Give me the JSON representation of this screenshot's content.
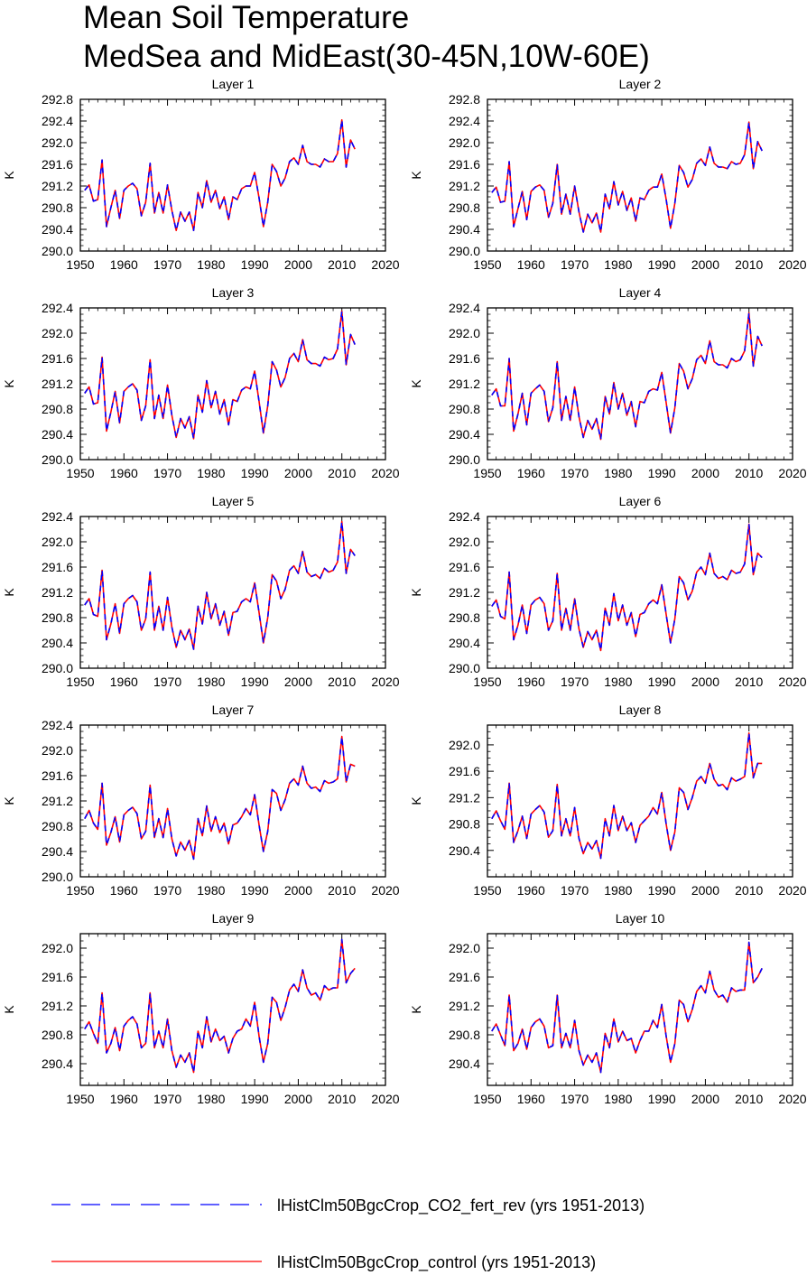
{
  "title": {
    "line1": "Mean Soil Temperature",
    "line2": "MedSea and MidEast(30-45N,10W-60E)"
  },
  "legend": {
    "items": [
      {
        "label": "lHistClm50BgcCrop_CO2_fert_rev (yrs 1951-2013)",
        "color": "#0000ff",
        "style": "dashed"
      },
      {
        "label": "lHistClm50BgcCrop_control (yrs 1951-2013)",
        "color": "#ff0000",
        "style": "solid"
      }
    ]
  },
  "chart_data": [
    {
      "type": "line",
      "title": "Layer 1",
      "ylabel": "K",
      "xlim": [
        1950,
        2020
      ],
      "ylim": [
        290.0,
        292.8
      ],
      "xticks": [
        1950,
        1960,
        1970,
        1980,
        1990,
        2000,
        2010,
        2020
      ],
      "yticks": [
        "290.0",
        "290.4",
        "290.8",
        "291.2",
        "291.6",
        "292.0",
        "292.4",
        "292.8"
      ],
      "x_start": 1951,
      "y": [
        291.12,
        291.22,
        290.92,
        290.95,
        291.68,
        290.45,
        290.8,
        291.12,
        290.6,
        291.12,
        291.2,
        291.25,
        291.15,
        290.65,
        290.9,
        291.62,
        290.7,
        291.08,
        290.7,
        291.22,
        290.75,
        290.38,
        290.72,
        290.55,
        290.72,
        290.38,
        291.08,
        290.8,
        291.3,
        290.9,
        291.12,
        290.78,
        291.0,
        290.58,
        291.0,
        290.95,
        291.15,
        291.2,
        291.2,
        291.45,
        290.98,
        290.45,
        290.9,
        291.6,
        291.47,
        291.2,
        291.35,
        291.65,
        291.72,
        291.6,
        291.95,
        291.65,
        291.6,
        291.6,
        291.55,
        291.7,
        291.65,
        291.65,
        291.8,
        292.42,
        291.55,
        292.05,
        291.88
      ],
      "series": [
        {
          "name": "lHistClm50BgcCrop_CO2_fert_rev (yrs 1951-2013)"
        },
        {
          "name": "lHistClm50BgcCrop_control (yrs 1951-2013)"
        }
      ]
    },
    {
      "type": "line",
      "title": "Layer 2",
      "ylabel": "K",
      "xlim": [
        1950,
        2020
      ],
      "ylim": [
        290.0,
        292.8
      ],
      "xticks": [
        1950,
        1960,
        1970,
        1980,
        1990,
        2000,
        2010,
        2020
      ],
      "yticks": [
        "290.0",
        "290.4",
        "290.8",
        "291.2",
        "291.6",
        "292.0",
        "292.4",
        "292.8"
      ],
      "x_start": 1951,
      "y": [
        291.08,
        291.18,
        290.9,
        290.92,
        291.65,
        290.45,
        290.78,
        291.1,
        290.58,
        291.1,
        291.18,
        291.22,
        291.12,
        290.62,
        290.88,
        291.6,
        290.68,
        291.05,
        290.68,
        291.2,
        290.72,
        290.35,
        290.68,
        290.52,
        290.7,
        290.35,
        291.05,
        290.78,
        291.28,
        290.85,
        291.1,
        290.75,
        290.98,
        290.55,
        290.98,
        290.95,
        291.12,
        291.18,
        291.18,
        291.42,
        290.95,
        290.42,
        290.88,
        291.58,
        291.45,
        291.18,
        291.32,
        291.62,
        291.7,
        291.58,
        291.92,
        291.62,
        291.55,
        291.55,
        291.52,
        291.65,
        291.6,
        291.62,
        291.78,
        292.38,
        291.52,
        292.02,
        291.85
      ],
      "series": [
        {
          "name": "lHistClm50BgcCrop_CO2_fert_rev (yrs 1951-2013)"
        },
        {
          "name": "lHistClm50BgcCrop_control (yrs 1951-2013)"
        }
      ]
    },
    {
      "type": "line",
      "title": "Layer 3",
      "ylabel": "K",
      "xlim": [
        1950,
        2020
      ],
      "ylim": [
        290.0,
        292.4
      ],
      "xticks": [
        1950,
        1960,
        1970,
        1980,
        1990,
        2000,
        2010,
        2020
      ],
      "yticks": [
        "290.0",
        "290.4",
        "290.8",
        "291.2",
        "291.6",
        "292.0",
        "292.4"
      ],
      "x_start": 1951,
      "y": [
        291.05,
        291.15,
        290.88,
        290.9,
        291.62,
        290.45,
        290.75,
        291.08,
        290.58,
        291.08,
        291.15,
        291.2,
        291.1,
        290.62,
        290.85,
        291.58,
        290.65,
        291.02,
        290.65,
        291.18,
        290.7,
        290.35,
        290.65,
        290.5,
        290.68,
        290.33,
        291.02,
        290.75,
        291.25,
        290.82,
        291.08,
        290.72,
        290.95,
        290.55,
        290.95,
        290.92,
        291.1,
        291.15,
        291.12,
        291.4,
        290.92,
        290.42,
        290.85,
        291.55,
        291.42,
        291.15,
        291.3,
        291.6,
        291.68,
        291.55,
        291.9,
        291.58,
        291.52,
        291.52,
        291.48,
        291.62,
        291.58,
        291.6,
        291.75,
        292.35,
        291.5,
        291.98,
        291.82
      ],
      "series": [
        {
          "name": "lHistClm50BgcCrop_CO2_fert_rev (yrs 1951-2013)"
        },
        {
          "name": "lHistClm50BgcCrop_control (yrs 1951-2013)"
        }
      ]
    },
    {
      "type": "line",
      "title": "Layer 4",
      "ylabel": "K",
      "xlim": [
        1950,
        2020
      ],
      "ylim": [
        290.0,
        292.4
      ],
      "xticks": [
        1950,
        1960,
        1970,
        1980,
        1990,
        2000,
        2010,
        2020
      ],
      "yticks": [
        "290.0",
        "290.4",
        "290.8",
        "291.2",
        "291.6",
        "292.0",
        "292.4"
      ],
      "x_start": 1951,
      "y": [
        291.02,
        291.12,
        290.85,
        290.85,
        291.6,
        290.45,
        290.72,
        291.05,
        290.55,
        291.05,
        291.12,
        291.18,
        291.08,
        290.6,
        290.82,
        291.55,
        290.62,
        291.0,
        290.62,
        291.15,
        290.68,
        290.35,
        290.62,
        290.48,
        290.65,
        290.32,
        291.0,
        290.72,
        291.22,
        290.8,
        291.05,
        290.7,
        290.92,
        290.52,
        290.92,
        290.9,
        291.08,
        291.12,
        291.1,
        291.38,
        290.9,
        290.42,
        290.82,
        291.52,
        291.4,
        291.12,
        291.28,
        291.58,
        291.65,
        291.52,
        291.88,
        291.55,
        291.5,
        291.5,
        291.45,
        291.6,
        291.55,
        291.58,
        291.72,
        292.32,
        291.48,
        291.95,
        291.8
      ],
      "series": [
        {
          "name": "lHistClm50BgcCrop_CO2_fert_rev (yrs 1951-2013)"
        },
        {
          "name": "lHistClm50BgcCrop_control (yrs 1951-2013)"
        }
      ]
    },
    {
      "type": "line",
      "title": "Layer 5",
      "ylabel": "K",
      "xlim": [
        1950,
        2020
      ],
      "ylim": [
        290.0,
        292.4
      ],
      "xticks": [
        1950,
        1960,
        1970,
        1980,
        1990,
        2000,
        2010,
        2020
      ],
      "yticks": [
        "290.0",
        "290.4",
        "290.8",
        "291.2",
        "291.6",
        "292.0",
        "292.4"
      ],
      "x_start": 1951,
      "y": [
        291.0,
        291.1,
        290.85,
        290.82,
        291.55,
        290.45,
        290.7,
        291.02,
        290.55,
        291.02,
        291.1,
        291.15,
        291.05,
        290.6,
        290.78,
        291.52,
        290.6,
        290.98,
        290.6,
        291.12,
        290.65,
        290.33,
        290.6,
        290.45,
        290.62,
        290.3,
        290.98,
        290.7,
        291.2,
        290.78,
        291.02,
        290.68,
        290.9,
        290.52,
        290.88,
        290.9,
        291.05,
        291.1,
        291.05,
        291.35,
        290.88,
        290.4,
        290.8,
        291.48,
        291.38,
        291.1,
        291.25,
        291.55,
        291.62,
        291.5,
        291.85,
        291.52,
        291.45,
        291.48,
        291.42,
        291.58,
        291.52,
        291.55,
        291.68,
        292.32,
        291.5,
        291.88,
        291.78
      ],
      "series": [
        {
          "name": "lHistClm50BgcCrop_CO2_fert_rev (yrs 1951-2013)"
        },
        {
          "name": "lHistClm50BgcCrop_control (yrs 1951-2013)"
        }
      ]
    },
    {
      "type": "line",
      "title": "Layer 6",
      "ylabel": "K",
      "xlim": [
        1950,
        2020
      ],
      "ylim": [
        290.0,
        292.4
      ],
      "xticks": [
        1950,
        1960,
        1970,
        1980,
        1990,
        2000,
        2010,
        2020
      ],
      "yticks": [
        "290.0",
        "290.4",
        "290.8",
        "291.2",
        "291.6",
        "292.0",
        "292.4"
      ],
      "x_start": 1951,
      "y": [
        290.98,
        291.08,
        290.82,
        290.78,
        291.52,
        290.45,
        290.68,
        291.0,
        290.55,
        291.0,
        291.08,
        291.12,
        291.02,
        290.6,
        290.75,
        291.5,
        290.6,
        290.95,
        290.6,
        291.1,
        290.62,
        290.33,
        290.58,
        290.45,
        290.6,
        290.28,
        290.95,
        290.68,
        291.18,
        290.75,
        291.0,
        290.68,
        290.88,
        290.5,
        290.85,
        290.88,
        291.02,
        291.08,
        291.02,
        291.32,
        290.85,
        290.4,
        290.78,
        291.45,
        291.35,
        291.08,
        291.22,
        291.52,
        291.6,
        291.48,
        291.82,
        291.5,
        291.42,
        291.45,
        291.4,
        291.55,
        291.5,
        291.52,
        291.65,
        292.28,
        291.48,
        291.82,
        291.75
      ],
      "series": [
        {
          "name": "lHistClm50BgcCrop_CO2_fert_rev (yrs 1951-2013)"
        },
        {
          "name": "lHistClm50BgcCrop_control (yrs 1951-2013)"
        }
      ]
    },
    {
      "type": "line",
      "title": "Layer 7",
      "ylabel": "K",
      "xlim": [
        1950,
        2020
      ],
      "ylim": [
        290.0,
        292.4
      ],
      "xticks": [
        1950,
        1960,
        1970,
        1980,
        1990,
        2000,
        2010,
        2020
      ],
      "yticks": [
        "290.0",
        "290.4",
        "290.8",
        "291.2",
        "291.6",
        "292.0",
        "292.4"
      ],
      "x_start": 1951,
      "y": [
        290.92,
        291.05,
        290.85,
        290.75,
        291.48,
        290.5,
        290.7,
        290.95,
        290.55,
        290.98,
        291.05,
        291.1,
        291.0,
        290.6,
        290.72,
        291.45,
        290.62,
        290.92,
        290.62,
        291.08,
        290.6,
        290.33,
        290.55,
        290.42,
        290.58,
        290.28,
        290.92,
        290.65,
        291.12,
        290.72,
        290.95,
        290.7,
        290.85,
        290.52,
        290.82,
        290.85,
        290.95,
        291.08,
        290.98,
        291.3,
        290.82,
        290.4,
        290.72,
        291.38,
        291.32,
        291.05,
        291.22,
        291.48,
        291.55,
        291.45,
        291.75,
        291.48,
        291.4,
        291.42,
        291.35,
        291.52,
        291.48,
        291.5,
        291.55,
        292.22,
        291.5,
        291.78,
        291.75
      ],
      "series": [
        {
          "name": "lHistClm50BgcCrop_CO2_fert_rev (yrs 1951-2013)"
        },
        {
          "name": "lHistClm50BgcCrop_control (yrs 1951-2013)"
        }
      ]
    },
    {
      "type": "line",
      "title": "Layer 8",
      "ylabel": "K",
      "xlim": [
        1950,
        2020
      ],
      "ylim": [
        290.0,
        292.3
      ],
      "xticks": [
        1950,
        1960,
        1970,
        1980,
        1990,
        2000,
        2010,
        2020
      ],
      "yticks": [
        "290.4",
        "290.8",
        "291.2",
        "291.6",
        "292.0"
      ],
      "x_start": 1951,
      "y": [
        290.88,
        291.0,
        290.85,
        290.72,
        291.42,
        290.52,
        290.7,
        290.92,
        290.58,
        290.95,
        291.02,
        291.08,
        290.98,
        290.6,
        290.7,
        291.4,
        290.62,
        290.88,
        290.62,
        291.05,
        290.58,
        290.35,
        290.52,
        290.42,
        290.55,
        290.28,
        290.88,
        290.62,
        291.08,
        290.7,
        290.92,
        290.7,
        290.82,
        290.52,
        290.78,
        290.85,
        290.92,
        291.05,
        290.95,
        291.28,
        290.8,
        290.4,
        290.68,
        291.35,
        291.28,
        291.02,
        291.2,
        291.45,
        291.52,
        291.42,
        291.72,
        291.48,
        291.38,
        291.4,
        291.32,
        291.5,
        291.45,
        291.48,
        291.52,
        292.18,
        291.5,
        291.72,
        291.72
      ],
      "series": [
        {
          "name": "lHistClm50BgcCrop_CO2_fert_rev (yrs 1951-2013)"
        },
        {
          "name": "lHistClm50BgcCrop_control (yrs 1951-2013)"
        }
      ]
    },
    {
      "type": "line",
      "title": "Layer 9",
      "ylabel": "K",
      "xlim": [
        1950,
        2020
      ],
      "ylim": [
        290.1,
        292.2
      ],
      "xticks": [
        1950,
        1960,
        1970,
        1980,
        1990,
        2000,
        2010,
        2020
      ],
      "yticks": [
        "290.4",
        "290.8",
        "291.2",
        "291.6",
        "292.0"
      ],
      "x_start": 1951,
      "y": [
        290.88,
        290.98,
        290.82,
        290.68,
        291.38,
        290.55,
        290.68,
        290.9,
        290.58,
        290.92,
        291.0,
        291.05,
        290.95,
        290.62,
        290.68,
        291.38,
        290.62,
        290.85,
        290.62,
        291.02,
        290.58,
        290.35,
        290.52,
        290.42,
        290.55,
        290.28,
        290.85,
        290.62,
        291.05,
        290.7,
        290.88,
        290.72,
        290.78,
        290.55,
        290.75,
        290.85,
        290.88,
        291.02,
        290.92,
        291.25,
        290.78,
        290.42,
        290.68,
        291.32,
        291.25,
        291.0,
        291.18,
        291.42,
        291.5,
        291.4,
        291.7,
        291.45,
        291.35,
        291.38,
        291.28,
        291.48,
        291.42,
        291.45,
        291.45,
        292.12,
        291.52,
        291.65,
        291.72
      ],
      "series": [
        {
          "name": "lHistClm50BgcCrop_CO2_fert_rev (yrs 1951-2013)"
        },
        {
          "name": "lHistClm50BgcCrop_control (yrs 1951-2013)"
        }
      ]
    },
    {
      "type": "line",
      "title": "Layer 10",
      "ylabel": "K",
      "xlim": [
        1950,
        2020
      ],
      "ylim": [
        290.1,
        292.2
      ],
      "xticks": [
        1950,
        1960,
        1970,
        1980,
        1990,
        2000,
        2010,
        2020
      ],
      "yticks": [
        "290.4",
        "290.8",
        "291.2",
        "291.6",
        "292.0"
      ],
      "x_start": 1951,
      "y": [
        290.85,
        290.95,
        290.8,
        290.65,
        291.35,
        290.58,
        290.68,
        290.88,
        290.6,
        290.9,
        290.98,
        291.02,
        290.92,
        290.62,
        290.65,
        291.35,
        290.62,
        290.82,
        290.62,
        291.0,
        290.58,
        290.38,
        290.52,
        290.42,
        290.55,
        290.28,
        290.82,
        290.62,
        291.02,
        290.7,
        290.85,
        290.72,
        290.75,
        290.55,
        290.72,
        290.85,
        290.85,
        291.0,
        290.9,
        291.22,
        290.78,
        290.42,
        290.68,
        291.28,
        291.22,
        290.98,
        291.15,
        291.4,
        291.48,
        291.38,
        291.68,
        291.42,
        291.32,
        291.35,
        291.25,
        291.45,
        291.4,
        291.42,
        291.42,
        292.08,
        291.52,
        291.6,
        291.72
      ],
      "series": [
        {
          "name": "lHistClm50BgcCrop_CO2_fert_rev (yrs 1951-2013)"
        },
        {
          "name": "lHistClm50BgcCrop_control (yrs 1951-2013)"
        }
      ]
    }
  ]
}
